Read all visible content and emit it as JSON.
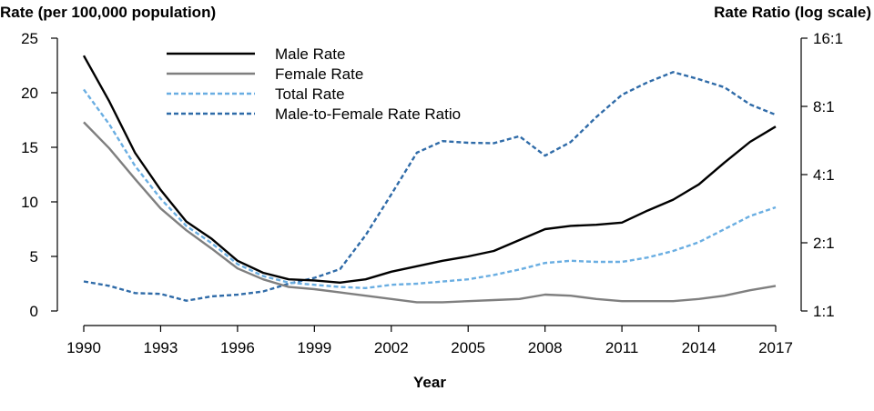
{
  "chart_data": {
    "type": "line",
    "ylabel_left": "Rate (per 100,000 population)",
    "ylabel_right": "Rate Ratio (log scale)",
    "xlabel": "Year",
    "x": [
      1990,
      1991,
      1992,
      1993,
      1994,
      1995,
      1996,
      1997,
      1998,
      1999,
      2000,
      2001,
      2002,
      2003,
      2004,
      2005,
      2006,
      2007,
      2008,
      2009,
      2010,
      2011,
      2012,
      2013,
      2014,
      2015,
      2016,
      2017
    ],
    "xlim": [
      1990,
      2017
    ],
    "x_ticks": [
      1990,
      1993,
      1996,
      1999,
      2002,
      2005,
      2008,
      2011,
      2014,
      2017
    ],
    "x_tick_labels": [
      "1990",
      "1993",
      "1996",
      "1999",
      "2002",
      "2005",
      "2008",
      "2011",
      "2014",
      "2017"
    ],
    "ylim_left": [
      0,
      25
    ],
    "y_ticks_left": [
      0,
      5,
      10,
      15,
      20,
      25
    ],
    "y_tick_labels_left": [
      "0",
      "5",
      "10",
      "15",
      "20",
      "25"
    ],
    "right_axis_scale": "log2",
    "ylim_right": [
      1,
      16
    ],
    "y_ticks_right": [
      1,
      2,
      4,
      8,
      16
    ],
    "y_tick_labels_right": [
      "1:1",
      "2:1",
      "4:1",
      "8:1",
      "16:1"
    ],
    "grid": false,
    "legend_position": "top-left",
    "series": [
      {
        "name": "Male Rate",
        "axis": "left",
        "color": "#000000",
        "dash": "solid",
        "values": [
          23.4,
          19.2,
          14.5,
          11.1,
          8.2,
          6.6,
          4.6,
          3.5,
          2.9,
          2.8,
          2.6,
          2.9,
          3.6,
          4.1,
          4.6,
          5.0,
          5.5,
          6.5,
          7.5,
          7.8,
          7.9,
          8.1,
          9.2,
          10.2,
          11.6,
          13.6,
          15.5,
          16.9
        ]
      },
      {
        "name": "Female Rate",
        "axis": "left",
        "color": "#7f7f7f",
        "dash": "solid",
        "values": [
          17.3,
          14.9,
          12.1,
          9.4,
          7.4,
          5.7,
          3.9,
          2.9,
          2.2,
          2.0,
          1.7,
          1.4,
          1.1,
          0.8,
          0.8,
          0.9,
          1.0,
          1.1,
          1.5,
          1.4,
          1.1,
          0.9,
          0.9,
          0.9,
          1.1,
          1.4,
          1.9,
          2.3
        ]
      },
      {
        "name": "Total Rate",
        "axis": "left",
        "color": "#6aaee2",
        "dash": "dashed",
        "values": [
          20.3,
          17.1,
          13.3,
          10.3,
          7.8,
          6.2,
          4.3,
          3.2,
          2.6,
          2.4,
          2.2,
          2.1,
          2.4,
          2.5,
          2.7,
          2.9,
          3.3,
          3.8,
          4.4,
          4.6,
          4.5,
          4.5,
          4.9,
          5.5,
          6.3,
          7.5,
          8.7,
          9.5
        ]
      },
      {
        "name": "Male-to-Female Rate Ratio",
        "axis": "right",
        "color": "#2f6ba8",
        "dash": "dashed",
        "values": [
          1.35,
          1.29,
          1.2,
          1.19,
          1.11,
          1.16,
          1.18,
          1.22,
          1.32,
          1.4,
          1.53,
          2.16,
          3.27,
          5.0,
          5.62,
          5.53,
          5.5,
          5.91,
          4.85,
          5.57,
          7.18,
          9.0,
          10.22,
          11.33,
          10.55,
          9.71,
          8.16,
          7.35
        ]
      }
    ]
  }
}
